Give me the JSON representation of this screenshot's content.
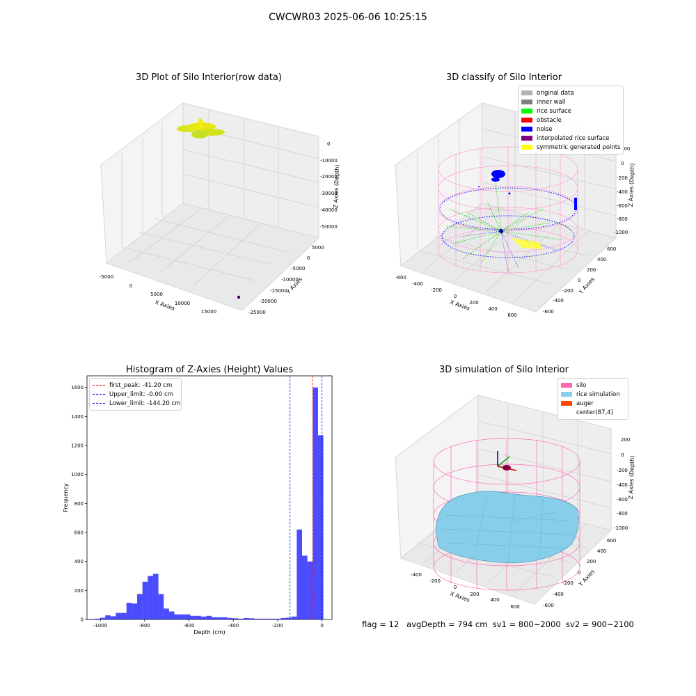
{
  "suptitle": "CWCWR03 2025-06-06 10:25:15",
  "footer": {
    "flag": "flag = 12",
    "avg_depth": "avgDepth = 794 cm",
    "sv1": "sv1 = 800~2000",
    "sv2": "sv2 = 900~2100"
  },
  "panels": {
    "raw": {
      "title": "3D Plot of Silo Interior(row data)",
      "xlabel": "X Axies",
      "ylabel": "Y Axies",
      "zlabel": "Z Axies (Depth)",
      "xticks": [
        "-5000",
        "0",
        "5000",
        "10000",
        "15000"
      ],
      "yticks": [
        "5000",
        "0",
        "-5000",
        "-10000",
        "-15000",
        "-20000",
        "-25000"
      ],
      "zticks": [
        "0",
        "-10000",
        "-20000",
        "-30000",
        "-40000",
        "-50000"
      ]
    },
    "classify": {
      "title": "3D classify of Silo Interior",
      "xlabel": "X Axies",
      "ylabel": "Y Axies",
      "zlabel": "Z Axies (Depth)",
      "xticks": [
        "-600",
        "-400",
        "-200",
        "0",
        "200",
        "400",
        "600"
      ],
      "yticks": [
        "600",
        "400",
        "200",
        "0",
        "-200",
        "-400",
        "-600"
      ],
      "zticks": [
        "200",
        "0",
        "-200",
        "-400",
        "-600",
        "-800",
        "-1000"
      ],
      "legend": [
        {
          "label": "original data",
          "color": "#b3b3b3"
        },
        {
          "label": "inner wall",
          "color": "#808080"
        },
        {
          "label": "rice surface",
          "color": "#00ff00"
        },
        {
          "label": "obstacle",
          "color": "#ff0000"
        },
        {
          "label": "noise",
          "color": "#0000ff"
        },
        {
          "label": "interpolated rice surface",
          "color": "#800080"
        },
        {
          "label": "symmetric generated points",
          "color": "#ffff00"
        }
      ]
    },
    "simulation": {
      "title": "3D simulation of Silo Interior",
      "xlabel": "X Axies",
      "ylabel": "Y Axies",
      "zlabel": "Z Axies (Depth)",
      "xticks": [
        "-400",
        "-200",
        "0",
        "200",
        "400",
        "600"
      ],
      "yticks": [
        "600",
        "400",
        "200",
        "0",
        "-200",
        "-400",
        "-600"
      ],
      "zticks": [
        "200",
        "0",
        "-200",
        "-400",
        "-600",
        "-800",
        "-1000"
      ],
      "legend": [
        {
          "label": "silo",
          "color": "#ff69b4"
        },
        {
          "label": "rice simulation",
          "color": "#87ceeb"
        },
        {
          "label": "auger",
          "color": "#ff4500"
        },
        {
          "label": "center(87,4)",
          "color": ""
        }
      ]
    }
  },
  "chart_data": {
    "type": "bar",
    "title": "Histogram of Z-Axies (Height) Values",
    "xlabel": "Depth (cm)",
    "ylabel": "Frequency",
    "xlim": [
      -1060,
      45
    ],
    "ylim": [
      0,
      1680
    ],
    "xticks": [
      -1000,
      -800,
      -600,
      -400,
      -200,
      0
    ],
    "yticks": [
      0,
      200,
      400,
      600,
      800,
      1000,
      1200,
      1400,
      1600
    ],
    "bar_color": "#0000ff",
    "bin_width": 24,
    "bins_left": [
      -1050,
      -1026,
      -1002,
      -978,
      -954,
      -930,
      -906,
      -882,
      -858,
      -834,
      -810,
      -786,
      -762,
      -738,
      -714,
      -690,
      -666,
      -642,
      -618,
      -594,
      -570,
      -546,
      -522,
      -498,
      -474,
      -450,
      -426,
      -402,
      -378,
      -354,
      -330,
      -306,
      -282,
      -258,
      -234,
      -210,
      -186,
      -162,
      -138,
      -114,
      -90,
      -66,
      -42,
      -18
    ],
    "values": [
      3,
      5,
      12,
      28,
      22,
      45,
      45,
      115,
      110,
      175,
      260,
      300,
      315,
      175,
      75,
      55,
      35,
      35,
      35,
      25,
      25,
      20,
      25,
      15,
      15,
      15,
      10,
      8,
      5,
      10,
      8,
      5,
      5,
      5,
      5,
      5,
      10,
      12,
      20,
      620,
      440,
      400,
      1600,
      1270
    ],
    "vlines": [
      {
        "label": "first_peak: -41.20 cm",
        "x": -41.2,
        "color": "#ff0000"
      },
      {
        "label": "Upper_limit: -0.00 cm",
        "x": 0.0,
        "color": "#0000ff"
      },
      {
        "label": "Lower_limit: -144.20 cm",
        "x": -144.2,
        "color": "#0000ff"
      }
    ],
    "legend_position": "top-left"
  }
}
